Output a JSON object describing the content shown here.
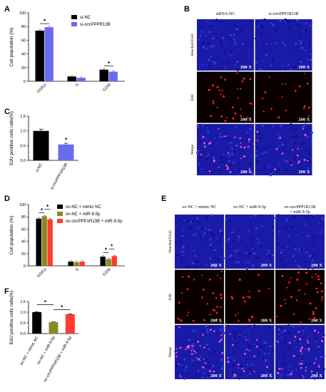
{
  "panels": {
    "A": "A",
    "B": "B",
    "C": "C",
    "D": "D",
    "E": "E",
    "F": "F"
  },
  "colors": {
    "black": "#000000",
    "blue": "#6b6bf0",
    "olive": "#8a8a22",
    "red": "#ff3b30",
    "hoechst_bg": "#1a1aa8",
    "edu_bg": "#0a0000",
    "edu_dot": "#ff2020"
  },
  "microscopy": {
    "B": {
      "columns": [
        "siRNA-NC",
        "si-circPPP1R13B"
      ],
      "rows": [
        "Hoechst33342",
        "EdU",
        "Merge"
      ],
      "magnification": "200 X"
    },
    "E": {
      "columns": [
        "ov-NC + mimic NC",
        "ov-NC + miR-9-5p",
        "ov-circPPP1R13B\n+ miR-9-5p"
      ],
      "rows": [
        "Hoechst33342",
        "EdU",
        "Merge"
      ],
      "magnification": "200 X"
    }
  },
  "chart_data": [
    {
      "panel": "A",
      "type": "bar",
      "categories": [
        "G0/G1",
        "S",
        "G2/M"
      ],
      "series": [
        {
          "name": "si-NC",
          "color": "#000000",
          "values": [
            74,
            7,
            17
          ]
        },
        {
          "name": "si-circPPPR13B",
          "color": "#6b6bf0",
          "values": [
            79,
            5,
            14
          ]
        }
      ],
      "ylabel": "Cell population (%)",
      "ylim": [
        0,
        100
      ],
      "yticks": [
        0,
        20,
        40,
        60,
        80,
        100
      ],
      "significance": [
        {
          "category": 0,
          "label": "*"
        },
        {
          "category": 2,
          "label": "*"
        }
      ]
    },
    {
      "panel": "C",
      "type": "bar",
      "categories": [
        "si-NC",
        "si-circPPP1R13B"
      ],
      "colors": [
        "#000000",
        "#6b6bf0"
      ],
      "values": [
        1.0,
        0.54
      ],
      "errors": [
        0.06,
        0.04
      ],
      "ylabel": "EdU positive cells ratio(%)",
      "ylim": [
        0,
        1.5
      ],
      "yticks": [
        0.0,
        0.5,
        1.0,
        1.5
      ],
      "significance": [
        {
          "category": 1,
          "label": "*"
        }
      ]
    },
    {
      "panel": "D",
      "type": "bar",
      "categories": [
        "G0/G1",
        "S",
        "G2/M"
      ],
      "series": [
        {
          "name": "ov-NC + mimic NC",
          "color": "#000000",
          "values": [
            77,
            7,
            15
          ]
        },
        {
          "name": "ov-NC + miR-9-5p",
          "color": "#8a8a22",
          "values": [
            81,
            6,
            11
          ]
        },
        {
          "name": "ov-circPPP1R13B + miR-9-5p",
          "color": "#ff3b30",
          "values": [
            76,
            7,
            16
          ]
        }
      ],
      "ylabel": "Cell population (%)",
      "ylim": [
        0,
        100
      ],
      "yticks": [
        0,
        20,
        40,
        60,
        80,
        100
      ],
      "significance": [
        {
          "category": 0,
          "from": 0,
          "to": 1,
          "label": "*"
        },
        {
          "category": 0,
          "from": 1,
          "to": 2,
          "label": "*"
        },
        {
          "category": 2,
          "from": 0,
          "to": 1,
          "label": "*"
        },
        {
          "category": 2,
          "from": 1,
          "to": 2,
          "label": "*"
        }
      ]
    },
    {
      "panel": "F",
      "type": "bar",
      "categories": [
        "ov-NC + mimic NC",
        "ov-NC + miR-9-5p",
        "ov-circPPP1R13B + miR-9-5p"
      ],
      "colors": [
        "#000000",
        "#8a8a22",
        "#ff3b30"
      ],
      "values": [
        1.0,
        0.53,
        0.9
      ],
      "errors": [
        0.02,
        0.02,
        0.02
      ],
      "ylabel": "EdU positive cells ratio(%)",
      "ylim": [
        0,
        1.5
      ],
      "yticks": [
        0.0,
        0.5,
        1.0,
        1.5
      ],
      "significance": [
        {
          "from": 0,
          "to": 1,
          "label": "*"
        },
        {
          "from": 1,
          "to": 2,
          "label": "*"
        }
      ]
    }
  ]
}
